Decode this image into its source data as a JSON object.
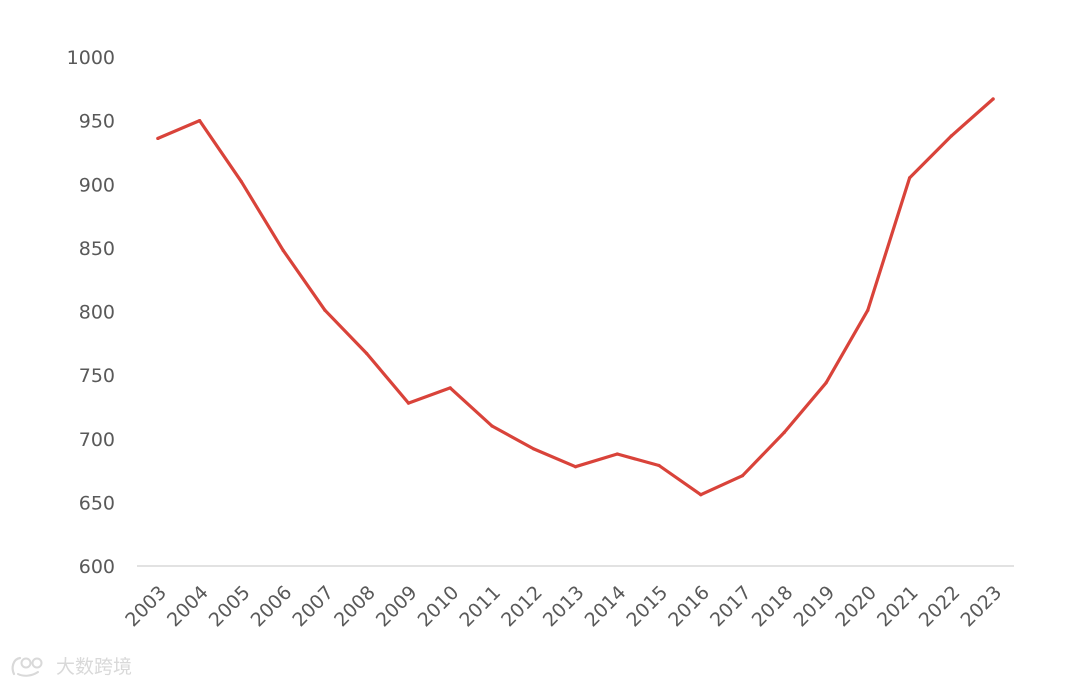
{
  "chart_data": {
    "type": "line",
    "title": "",
    "xlabel": "",
    "ylabel": "",
    "ylim": [
      600,
      1000
    ],
    "yticks": [
      600,
      650,
      700,
      750,
      800,
      850,
      900,
      950,
      1000
    ],
    "grid": false,
    "categories": [
      "2003",
      "2004",
      "2005",
      "2006",
      "2007",
      "2008",
      "2009",
      "2010",
      "2011",
      "2012",
      "2013",
      "2014",
      "2015",
      "2016",
      "2017",
      "2018",
      "2019",
      "2020",
      "2021",
      "2022",
      "2023"
    ],
    "series": [
      {
        "values": [
          936,
          950,
          902,
          848,
          801,
          767,
          728,
          740,
          710,
          692,
          678,
          688,
          679,
          656,
          671,
          705,
          744,
          801,
          905,
          938,
          967
        ],
        "color": "#d9433a"
      }
    ]
  },
  "watermark": {
    "text": "大数跨境",
    "icon": "brand-logo-icon"
  }
}
